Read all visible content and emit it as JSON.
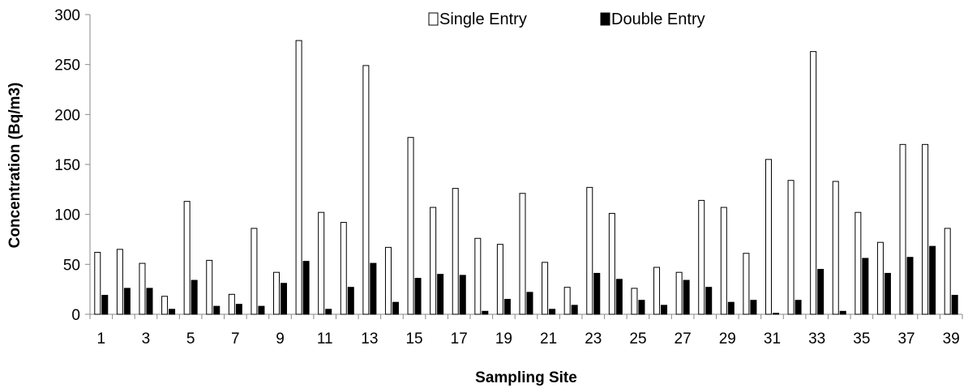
{
  "chart_data": {
    "type": "bar",
    "title": "",
    "xlabel": "Sampling Site",
    "ylabel": "Concentration (Bq/m3)",
    "ylim": [
      0,
      300
    ],
    "yticks": [
      0,
      50,
      100,
      150,
      200,
      250,
      300
    ],
    "grid": false,
    "legend_position": "top-center",
    "categories": [
      "1",
      "2",
      "3",
      "4",
      "5",
      "6",
      "7",
      "8",
      "9",
      "10",
      "11",
      "12",
      "13",
      "14",
      "15",
      "16",
      "17",
      "18",
      "19",
      "20",
      "21",
      "22",
      "23",
      "24",
      "25",
      "26",
      "27",
      "28",
      "29",
      "30",
      "31",
      "32",
      "33",
      "34",
      "35",
      "36",
      "37",
      "38",
      "39"
    ],
    "visible_category_labels": [
      "1",
      "3",
      "5",
      "7",
      "9",
      "11",
      "13",
      "15",
      "17",
      "19",
      "21",
      "23",
      "25",
      "27",
      "29",
      "31",
      "33",
      "35",
      "37",
      "39"
    ],
    "series": [
      {
        "name": "Single Entry",
        "color": "#ffffff",
        "values": [
          62,
          65,
          51,
          18,
          113,
          54,
          20,
          86,
          42,
          274,
          102,
          92,
          249,
          67,
          177,
          107,
          126,
          76,
          70,
          121,
          52,
          27,
          127,
          101,
          26,
          47,
          42,
          114,
          107,
          61,
          155,
          134,
          263,
          133,
          102,
          72,
          170,
          170,
          86
        ]
      },
      {
        "name": "Double Entry",
        "color": "#000000",
        "values": [
          19,
          26,
          26,
          5,
          34,
          8,
          10,
          8,
          31,
          53,
          5,
          27,
          51,
          12,
          36,
          40,
          39,
          3,
          15,
          22,
          5,
          9,
          41,
          35,
          14,
          9,
          34,
          27,
          12,
          14,
          1,
          14,
          45,
          3,
          56,
          41,
          57,
          68,
          19
        ]
      }
    ]
  }
}
